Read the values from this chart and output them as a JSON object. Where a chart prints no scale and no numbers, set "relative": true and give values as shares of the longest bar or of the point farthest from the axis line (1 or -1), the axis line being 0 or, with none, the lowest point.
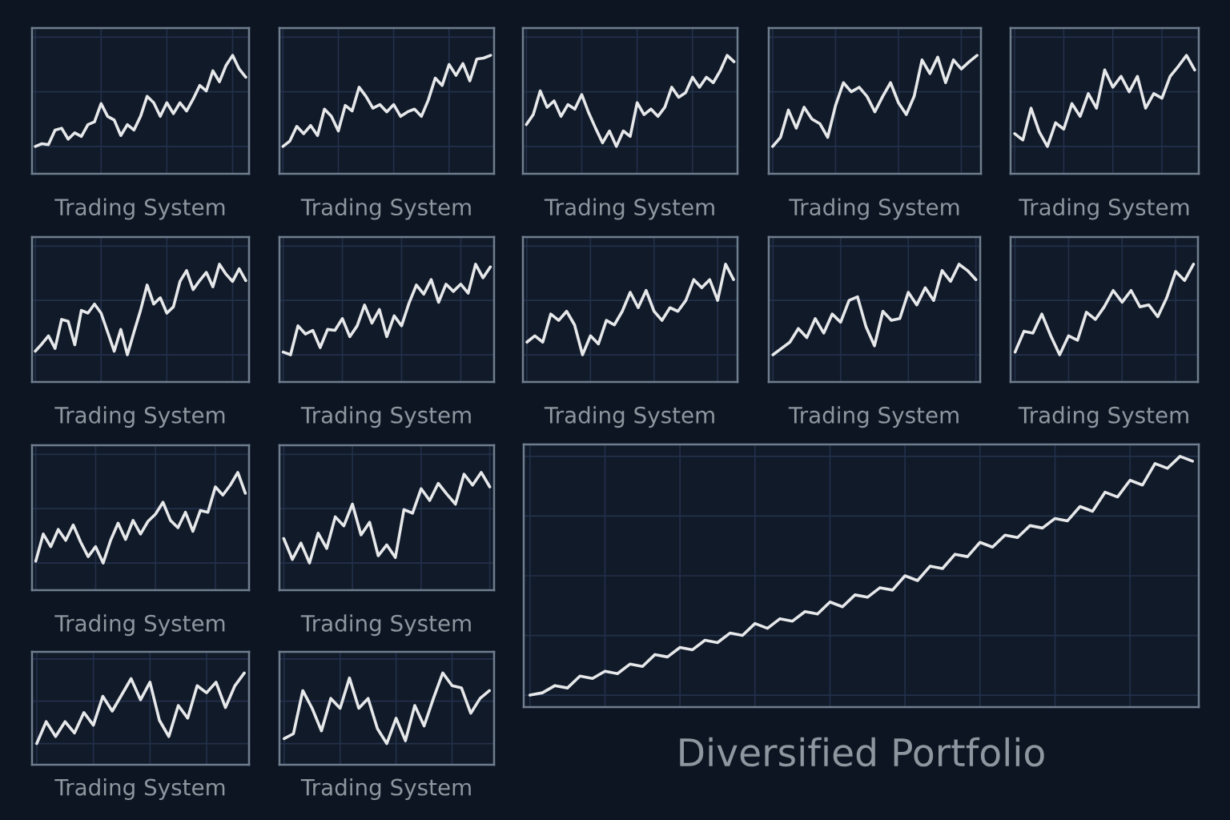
{
  "chart_data": [
    {
      "type": "line",
      "title": "Trading System",
      "relative": true,
      "grid": true,
      "tick_labels": false,
      "categories": [
        null,
        null,
        null,
        null,
        null,
        null,
        null,
        null,
        null,
        null,
        null,
        null,
        null,
        null,
        null,
        null,
        null,
        null,
        null,
        null,
        null,
        null,
        null,
        null,
        null,
        null,
        null,
        null,
        null,
        null,
        null,
        null,
        null
      ],
      "series": [
        {
          "color": "#e6e8ea",
          "values": [
            0,
            0.03,
            0.02,
            0.18,
            0.2,
            0.08,
            0.15,
            0.11,
            0.24,
            0.27,
            0.47,
            0.33,
            0.29,
            0.12,
            0.24,
            0.18,
            0.33,
            0.55,
            0.48,
            0.33,
            0.48,
            0.36,
            0.48,
            0.39,
            0.52,
            0.67,
            0.61,
            0.83,
            0.71,
            0.89,
            1,
            0.85,
            0.76
          ]
        }
      ]
    },
    {
      "type": "line",
      "title": "Trading System",
      "relative": true,
      "grid": true,
      "tick_labels": false,
      "categories": [
        null,
        null,
        null,
        null,
        null,
        null,
        null,
        null,
        null,
        null,
        null,
        null,
        null,
        null,
        null,
        null,
        null,
        null,
        null,
        null,
        null,
        null,
        null,
        null,
        null,
        null,
        null,
        null,
        null,
        null,
        null
      ],
      "series": [
        {
          "color": "#e6e8ea",
          "values": [
            0,
            0.06,
            0.22,
            0.14,
            0.23,
            0.12,
            0.41,
            0.33,
            0.17,
            0.45,
            0.39,
            0.65,
            0.55,
            0.42,
            0.46,
            0.38,
            0.46,
            0.33,
            0.38,
            0.41,
            0.33,
            0.51,
            0.75,
            0.67,
            0.9,
            0.78,
            0.91,
            0.72,
            0.96,
            0.97,
            1
          ]
        }
      ]
    },
    {
      "type": "line",
      "title": "Trading System",
      "relative": true,
      "grid": true,
      "tick_labels": false,
      "categories": [
        null,
        null,
        null,
        null,
        null,
        null,
        null,
        null,
        null,
        null,
        null,
        null,
        null,
        null,
        null,
        null,
        null,
        null,
        null,
        null,
        null,
        null,
        null,
        null,
        null,
        null,
        null,
        null,
        null,
        null,
        null
      ],
      "series": [
        {
          "color": "#e6e8ea",
          "values": [
            0.24,
            0.35,
            0.61,
            0.43,
            0.5,
            0.33,
            0.46,
            0.41,
            0.57,
            0.37,
            0.2,
            0.04,
            0.17,
            0,
            0.17,
            0.11,
            0.48,
            0.35,
            0.41,
            0.33,
            0.43,
            0.65,
            0.54,
            0.59,
            0.76,
            0.65,
            0.76,
            0.7,
            0.83,
            1,
            0.93
          ]
        }
      ]
    },
    {
      "type": "line",
      "title": "Trading System",
      "relative": true,
      "grid": true,
      "tick_labels": false,
      "categories": [
        null,
        null,
        null,
        null,
        null,
        null,
        null,
        null,
        null,
        null,
        null,
        null,
        null,
        null,
        null,
        null,
        null,
        null,
        null,
        null,
        null,
        null,
        null,
        null,
        null,
        null,
        null
      ],
      "series": [
        {
          "color": "#e6e8ea",
          "values": [
            0,
            0.1,
            0.4,
            0.2,
            0.43,
            0.3,
            0.25,
            0.1,
            0.45,
            0.7,
            0.6,
            0.65,
            0.55,
            0.38,
            0.55,
            0.7,
            0.48,
            0.35,
            0.55,
            0.95,
            0.8,
            0.98,
            0.7,
            0.95,
            0.85,
            0.93,
            1
          ]
        }
      ]
    },
    {
      "type": "line",
      "title": "Trading System",
      "relative": true,
      "grid": true,
      "tick_labels": false,
      "categories": [
        null,
        null,
        null,
        null,
        null,
        null,
        null,
        null,
        null,
        null,
        null,
        null,
        null,
        null,
        null,
        null,
        null,
        null,
        null,
        null,
        null,
        null,
        null
      ],
      "series": [
        {
          "color": "#e6e8ea",
          "values": [
            0.14,
            0.07,
            0.42,
            0.16,
            0,
            0.26,
            0.19,
            0.47,
            0.33,
            0.58,
            0.42,
            0.84,
            0.65,
            0.77,
            0.6,
            0.77,
            0.42,
            0.58,
            0.53,
            0.77,
            0.88,
            1,
            0.84
          ]
        }
      ]
    },
    {
      "type": "line",
      "title": "Trading System",
      "relative": true,
      "grid": true,
      "tick_labels": false,
      "categories": [
        null,
        null,
        null,
        null,
        null,
        null,
        null,
        null,
        null,
        null,
        null,
        null,
        null,
        null,
        null,
        null,
        null,
        null,
        null,
        null,
        null,
        null,
        null,
        null,
        null,
        null,
        null,
        null,
        null,
        null,
        null,
        null,
        null
      ],
      "series": [
        {
          "color": "#e6e8ea",
          "values": [
            0.04,
            0.12,
            0.21,
            0.07,
            0.39,
            0.37,
            0.11,
            0.49,
            0.46,
            0.56,
            0.46,
            0.25,
            0.04,
            0.28,
            0,
            0.25,
            0.49,
            0.77,
            0.56,
            0.63,
            0.46,
            0.53,
            0.81,
            0.93,
            0.72,
            0.82,
            0.91,
            0.75,
            1,
            0.89,
            0.81,
            0.95,
            0.82
          ]
        }
      ]
    },
    {
      "type": "line",
      "title": "Trading System",
      "relative": true,
      "grid": true,
      "tick_labels": false,
      "categories": [
        null,
        null,
        null,
        null,
        null,
        null,
        null,
        null,
        null,
        null,
        null,
        null,
        null,
        null,
        null,
        null,
        null,
        null,
        null,
        null,
        null,
        null,
        null,
        null,
        null,
        null,
        null,
        null,
        null
      ],
      "series": [
        {
          "color": "#e6e8ea",
          "values": [
            0.03,
            0,
            0.32,
            0.23,
            0.27,
            0.08,
            0.28,
            0.27,
            0.4,
            0.2,
            0.32,
            0.55,
            0.35,
            0.5,
            0.2,
            0.43,
            0.32,
            0.57,
            0.77,
            0.67,
            0.83,
            0.58,
            0.78,
            0.7,
            0.78,
            0.68,
            1,
            0.85,
            0.97
          ]
        }
      ]
    },
    {
      "type": "line",
      "title": "Trading System",
      "relative": true,
      "grid": true,
      "tick_labels": false,
      "categories": [
        null,
        null,
        null,
        null,
        null,
        null,
        null,
        null,
        null,
        null,
        null,
        null,
        null,
        null,
        null,
        null,
        null,
        null,
        null,
        null,
        null,
        null,
        null,
        null,
        null,
        null,
        null
      ],
      "series": [
        {
          "color": "#e6e8ea",
          "values": [
            0.14,
            0.21,
            0.14,
            0.45,
            0.38,
            0.48,
            0.33,
            0,
            0.21,
            0.12,
            0.38,
            0.33,
            0.48,
            0.69,
            0.52,
            0.71,
            0.48,
            0.38,
            0.52,
            0.48,
            0.6,
            0.83,
            0.74,
            0.83,
            0.6,
            1,
            0.83
          ]
        }
      ]
    },
    {
      "type": "line",
      "title": "Trading System",
      "relative": true,
      "grid": true,
      "tick_labels": false,
      "categories": [
        null,
        null,
        null,
        null,
        null,
        null,
        null,
        null,
        null,
        null,
        null,
        null,
        null,
        null,
        null,
        null,
        null,
        null,
        null,
        null,
        null,
        null,
        null,
        null,
        null
      ],
      "series": [
        {
          "color": "#e6e8ea",
          "values": [
            0,
            0.07,
            0.14,
            0.29,
            0.19,
            0.4,
            0.24,
            0.45,
            0.36,
            0.6,
            0.64,
            0.31,
            0.1,
            0.48,
            0.38,
            0.4,
            0.69,
            0.55,
            0.74,
            0.6,
            0.93,
            0.81,
            1,
            0.93,
            0.83
          ]
        }
      ]
    },
    {
      "type": "line",
      "title": "Trading System",
      "relative": true,
      "grid": true,
      "tick_labels": false,
      "categories": [
        null,
        null,
        null,
        null,
        null,
        null,
        null,
        null,
        null,
        null,
        null,
        null,
        null,
        null,
        null,
        null,
        null,
        null,
        null,
        null,
        null
      ],
      "series": [
        {
          "color": "#e6e8ea",
          "values": [
            0.03,
            0.26,
            0.24,
            0.45,
            0.21,
            0,
            0.21,
            0.16,
            0.47,
            0.39,
            0.53,
            0.71,
            0.58,
            0.71,
            0.53,
            0.55,
            0.42,
            0.63,
            0.92,
            0.82,
            1
          ]
        }
      ]
    },
    {
      "type": "line",
      "title": "Trading System",
      "relative": true,
      "grid": true,
      "tick_labels": false,
      "categories": [
        null,
        null,
        null,
        null,
        null,
        null,
        null,
        null,
        null,
        null,
        null,
        null,
        null,
        null,
        null,
        null,
        null,
        null,
        null,
        null,
        null,
        null,
        null,
        null,
        null,
        null,
        null,
        null,
        null
      ],
      "series": [
        {
          "color": "#e6e8ea",
          "values": [
            0.02,
            0.32,
            0.18,
            0.37,
            0.25,
            0.42,
            0.23,
            0.07,
            0.18,
            0,
            0.25,
            0.44,
            0.26,
            0.47,
            0.32,
            0.46,
            0.54,
            0.67,
            0.47,
            0.39,
            0.56,
            0.35,
            0.58,
            0.56,
            0.84,
            0.75,
            0.86,
            1,
            0.77
          ]
        }
      ]
    },
    {
      "type": "line",
      "title": "Trading System",
      "relative": true,
      "grid": true,
      "tick_labels": false,
      "categories": [
        null,
        null,
        null,
        null,
        null,
        null,
        null,
        null,
        null,
        null,
        null,
        null,
        null,
        null,
        null,
        null,
        null,
        null,
        null,
        null,
        null,
        null,
        null,
        null,
        null
      ],
      "series": [
        {
          "color": "#e6e8ea",
          "values": [
            0.27,
            0.04,
            0.22,
            0,
            0.33,
            0.16,
            0.51,
            0.41,
            0.65,
            0.31,
            0.45,
            0.08,
            0.2,
            0.06,
            0.59,
            0.55,
            0.82,
            0.69,
            0.88,
            0.76,
            0.65,
            0.98,
            0.86,
            1,
            0.84
          ]
        }
      ]
    },
    {
      "type": "line",
      "title": "Diversified Portfolio",
      "relative": true,
      "grid": true,
      "tick_labels": false,
      "categories": [
        null,
        null,
        null,
        null,
        null,
        null,
        null,
        null,
        null,
        null,
        null,
        null,
        null,
        null,
        null,
        null,
        null,
        null,
        null,
        null,
        null,
        null,
        null,
        null,
        null,
        null,
        null,
        null,
        null,
        null,
        null,
        null,
        null,
        null,
        null,
        null,
        null,
        null,
        null,
        null,
        null,
        null,
        null,
        null,
        null,
        null,
        null,
        null,
        null,
        null,
        null,
        null,
        null,
        null
      ],
      "series": [
        {
          "color": "#e6e8ea",
          "values": [
            0,
            0.01,
            0.04,
            0.03,
            0.08,
            0.07,
            0.1,
            0.09,
            0.13,
            0.12,
            0.17,
            0.16,
            0.2,
            0.19,
            0.23,
            0.22,
            0.26,
            0.25,
            0.3,
            0.28,
            0.32,
            0.31,
            0.35,
            0.34,
            0.39,
            0.37,
            0.42,
            0.41,
            0.45,
            0.44,
            0.5,
            0.48,
            0.54,
            0.53,
            0.59,
            0.58,
            0.64,
            0.62,
            0.67,
            0.66,
            0.71,
            0.7,
            0.74,
            0.73,
            0.79,
            0.77,
            0.85,
            0.83,
            0.9,
            0.88,
            0.97,
            0.95,
            1,
            0.98
          ]
        }
      ]
    },
    {
      "type": "line",
      "title": "Trading System",
      "relative": true,
      "grid": true,
      "tick_labels": false,
      "categories": [
        null,
        null,
        null,
        null,
        null,
        null,
        null,
        null,
        null,
        null,
        null,
        null,
        null,
        null,
        null,
        null,
        null,
        null,
        null,
        null,
        null,
        null,
        null
      ],
      "series": [
        {
          "color": "#e6e8ea",
          "values": [
            0,
            0.31,
            0.1,
            0.31,
            0.15,
            0.44,
            0.26,
            0.67,
            0.46,
            0.69,
            0.92,
            0.62,
            0.87,
            0.33,
            0.1,
            0.54,
            0.36,
            0.82,
            0.72,
            0.87,
            0.51,
            0.82,
            1
          ]
        }
      ]
    },
    {
      "type": "line",
      "title": "Trading System",
      "relative": true,
      "grid": true,
      "tick_labels": false,
      "categories": [
        null,
        null,
        null,
        null,
        null,
        null,
        null,
        null,
        null,
        null,
        null,
        null,
        null,
        null,
        null,
        null,
        null,
        null,
        null,
        null,
        null,
        null,
        null
      ],
      "series": [
        {
          "color": "#e6e8ea",
          "values": [
            0.07,
            0.14,
            0.75,
            0.5,
            0.18,
            0.64,
            0.5,
            0.93,
            0.5,
            0.64,
            0.21,
            0,
            0.36,
            0.04,
            0.54,
            0.25,
            0.64,
            1,
            0.82,
            0.79,
            0.43,
            0.64,
            0.75
          ]
        }
      ]
    }
  ]
}
